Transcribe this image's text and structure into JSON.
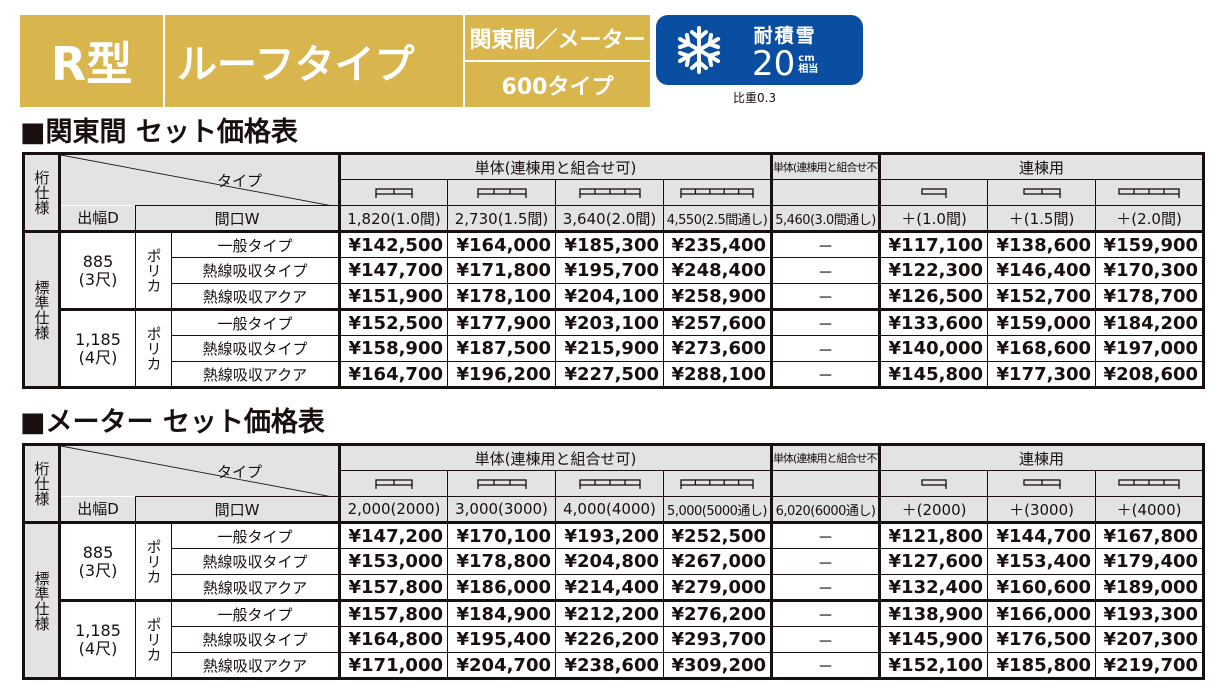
{
  "header": {
    "model": "R型",
    "type_name": "ルーフタイプ",
    "spec_top": "関東間／メーター",
    "spec_bottom": "600タイプ",
    "snow_badge": {
      "icon": "snowflake-icon",
      "label": "耐積雪",
      "value": "20",
      "unit_top": "cm",
      "unit_bottom": "相当",
      "color": "#0a4ea2"
    },
    "ratio": "比重0.3",
    "accent_color": "#d9b54d"
  },
  "tables": [
    {
      "title": "■関東間 セット価格表",
      "head": {
        "keta": "桁仕様",
        "type_label": "タイプ",
        "depth_label": "出幅D",
        "width_label": "間口W",
        "group_single": "単体(連棟用と組合せ可)",
        "group_single_no": "単体(連棟用と組合せ不可)",
        "group_multi": "連棟用",
        "widths": [
          "1,820(1.0間)",
          "2,730(1.5間)",
          "3,640(2.0間)",
          "4,550(2.5間通し)",
          "5,460(3.0間通し)",
          "＋(1.0間)",
          "＋(1.5間)",
          "＋(2.0間)"
        ]
      },
      "spec": "標準仕様",
      "groups": [
        {
          "depth": "885",
          "depth_sub": "(3尺)",
          "material": "ポリカ",
          "rows": [
            {
              "type": "一般タイプ",
              "prices": [
                "¥142,500",
                "¥164,000",
                "¥185,300",
                "¥235,400",
                "－",
                "¥117,100",
                "¥138,600",
                "¥159,900"
              ]
            },
            {
              "type": "熱線吸収タイプ",
              "prices": [
                "¥147,700",
                "¥171,800",
                "¥195,700",
                "¥248,400",
                "－",
                "¥122,300",
                "¥146,400",
                "¥170,300"
              ]
            },
            {
              "type": "熱線吸収アクア",
              "prices": [
                "¥151,900",
                "¥178,100",
                "¥204,100",
                "¥258,900",
                "－",
                "¥126,500",
                "¥152,700",
                "¥178,700"
              ]
            }
          ]
        },
        {
          "depth": "1,185",
          "depth_sub": "(4尺)",
          "material": "ポリカ",
          "rows": [
            {
              "type": "一般タイプ",
              "prices": [
                "¥152,500",
                "¥177,900",
                "¥203,100",
                "¥257,600",
                "－",
                "¥133,600",
                "¥159,000",
                "¥184,200"
              ]
            },
            {
              "type": "熱線吸収タイプ",
              "prices": [
                "¥158,900",
                "¥187,500",
                "¥215,900",
                "¥273,600",
                "－",
                "¥140,000",
                "¥168,600",
                "¥197,000"
              ]
            },
            {
              "type": "熱線吸収アクア",
              "prices": [
                "¥164,700",
                "¥196,200",
                "¥227,500",
                "¥288,100",
                "－",
                "¥145,800",
                "¥177,300",
                "¥208,600"
              ]
            }
          ]
        }
      ]
    },
    {
      "title": "■メーター セット価格表",
      "head": {
        "keta": "桁仕様",
        "type_label": "タイプ",
        "depth_label": "出幅D",
        "width_label": "間口W",
        "group_single": "単体(連棟用と組合せ可)",
        "group_single_no": "単体(連棟用と組合せ不可)",
        "group_multi": "連棟用",
        "widths": [
          "2,000(2000)",
          "3,000(3000)",
          "4,000(4000)",
          "5,000(5000通し)",
          "6,020(6000通し)",
          "＋(2000)",
          "＋(3000)",
          "＋(4000)"
        ]
      },
      "spec": "標準仕様",
      "groups": [
        {
          "depth": "885",
          "depth_sub": "(3尺)",
          "material": "ポリカ",
          "rows": [
            {
              "type": "一般タイプ",
              "prices": [
                "¥147,200",
                "¥170,100",
                "¥193,200",
                "¥252,500",
                "－",
                "¥121,800",
                "¥144,700",
                "¥167,800"
              ]
            },
            {
              "type": "熱線吸収タイプ",
              "prices": [
                "¥153,000",
                "¥178,800",
                "¥204,800",
                "¥267,000",
                "－",
                "¥127,600",
                "¥153,400",
                "¥179,400"
              ]
            },
            {
              "type": "熱線吸収アクア",
              "prices": [
                "¥157,800",
                "¥186,000",
                "¥214,400",
                "¥279,000",
                "－",
                "¥132,400",
                "¥160,600",
                "¥189,000"
              ]
            }
          ]
        },
        {
          "depth": "1,185",
          "depth_sub": "(4尺)",
          "material": "ポリカ",
          "rows": [
            {
              "type": "一般タイプ",
              "prices": [
                "¥157,800",
                "¥184,900",
                "¥212,200",
                "¥276,200",
                "－",
                "¥138,900",
                "¥166,000",
                "¥193,300"
              ]
            },
            {
              "type": "熱線吸収タイプ",
              "prices": [
                "¥164,800",
                "¥195,400",
                "¥226,200",
                "¥293,700",
                "－",
                "¥145,900",
                "¥176,500",
                "¥207,300"
              ]
            },
            {
              "type": "熱線吸収アクア",
              "prices": [
                "¥171,000",
                "¥204,700",
                "¥238,600",
                "¥309,200",
                "－",
                "¥152,100",
                "¥185,800",
                "¥219,700"
              ]
            }
          ]
        }
      ]
    }
  ]
}
